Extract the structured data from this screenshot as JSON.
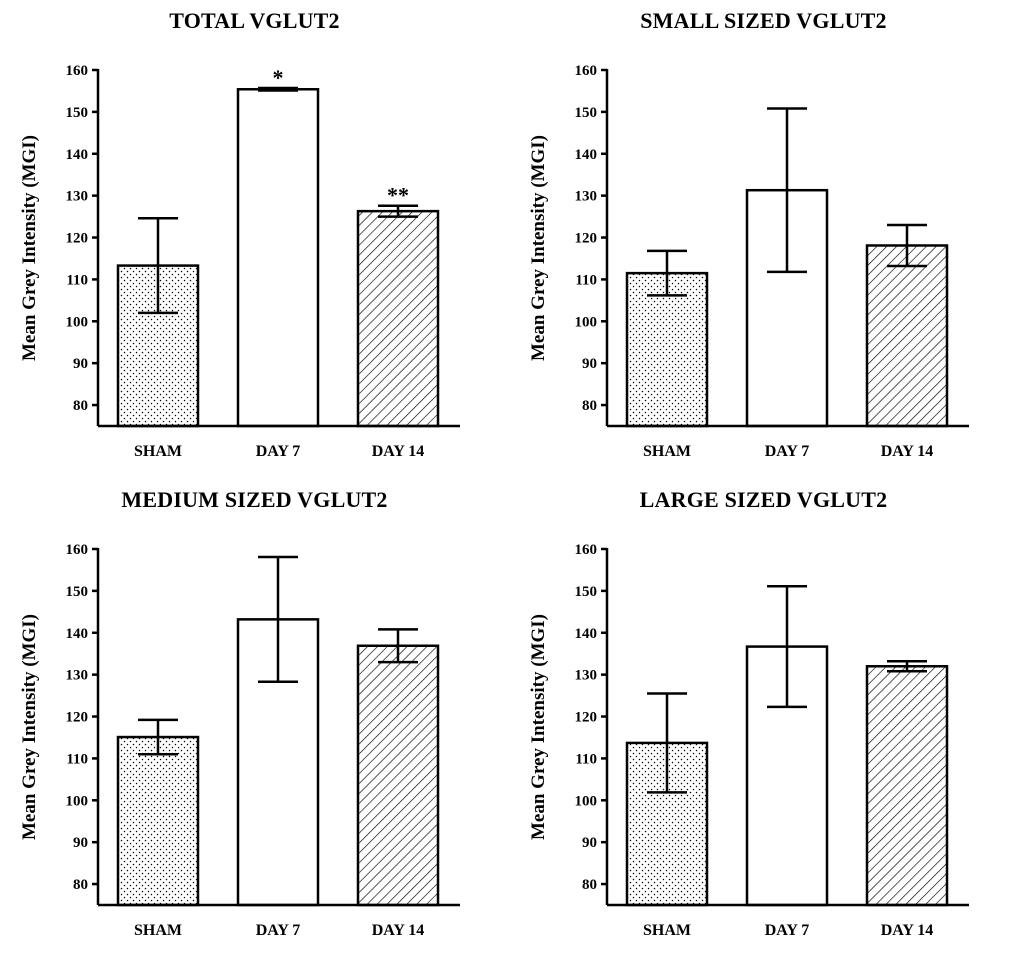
{
  "chart_data": [
    {
      "type": "bar",
      "title": "TOTAL VGLUT2",
      "ylabel": "Mean Grey Intensity (MGI)",
      "xlabel": "",
      "categories": [
        "SHAM",
        "DAY 7",
        "DAY 14"
      ],
      "values": [
        113.3,
        155.4,
        126.3
      ],
      "error_upper": [
        124.6,
        155.7,
        127.6
      ],
      "error_lower": [
        102.0,
        155.1,
        125.0
      ],
      "annotations": [
        "",
        "*",
        "**"
      ],
      "patterns": [
        "dots",
        "none",
        "hatch"
      ],
      "ylim": [
        75,
        160
      ],
      "yticks": [
        80,
        90,
        100,
        110,
        120,
        130,
        140,
        150,
        160
      ]
    },
    {
      "type": "bar",
      "title": "SMALL SIZED VGLUT2",
      "ylabel": "Mean Grey Intensity (MGI)",
      "xlabel": "",
      "categories": [
        "SHAM",
        "DAY 7",
        "DAY 14"
      ],
      "values": [
        111.5,
        131.3,
        118.1
      ],
      "error_upper": [
        116.8,
        150.8,
        123.0
      ],
      "error_lower": [
        106.2,
        111.8,
        113.2
      ],
      "annotations": [
        "",
        "",
        ""
      ],
      "patterns": [
        "dots",
        "none",
        "hatch"
      ],
      "ylim": [
        75,
        160
      ],
      "yticks": [
        80,
        90,
        100,
        110,
        120,
        130,
        140,
        150,
        160
      ]
    },
    {
      "type": "bar",
      "title": "MEDIUM SIZED VGLUT2",
      "ylabel": "Mean Grey Intensity (MGI)",
      "xlabel": "",
      "categories": [
        "SHAM",
        "DAY 7",
        "DAY 14"
      ],
      "values": [
        115.1,
        143.2,
        136.9
      ],
      "error_upper": [
        119.2,
        158.1,
        140.8
      ],
      "error_lower": [
        111.0,
        128.3,
        133.0
      ],
      "annotations": [
        "",
        "",
        ""
      ],
      "patterns": [
        "dots",
        "none",
        "hatch"
      ],
      "ylim": [
        75,
        160
      ],
      "yticks": [
        80,
        90,
        100,
        110,
        120,
        130,
        140,
        150,
        160
      ]
    },
    {
      "type": "bar",
      "title": "LARGE SIZED VGLUT2",
      "ylabel": "Mean Grey Intensity (MGI)",
      "xlabel": "",
      "categories": [
        "SHAM",
        "DAY 7",
        "DAY 14"
      ],
      "values": [
        113.7,
        136.7,
        132.0
      ],
      "error_upper": [
        125.5,
        151.1,
        133.2
      ],
      "error_lower": [
        101.9,
        122.3,
        130.8
      ],
      "annotations": [
        "",
        "",
        ""
      ],
      "patterns": [
        "dots",
        "none",
        "hatch"
      ],
      "ylim": [
        75,
        160
      ],
      "yticks": [
        80,
        90,
        100,
        110,
        120,
        130,
        140,
        150,
        160
      ]
    }
  ]
}
